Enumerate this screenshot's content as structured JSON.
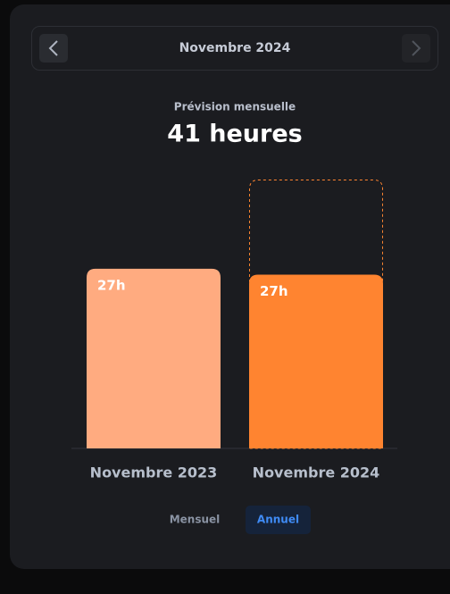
{
  "nav": {
    "title": "Novembre 2024"
  },
  "chart_data": {
    "type": "bar",
    "subtitle": "Prévision mensuelle",
    "forecast": 41,
    "forecast_label": "41 heures",
    "categories": [
      "Novembre 2023",
      "Novembre 2024"
    ],
    "values": [
      27.4,
      26.5
    ],
    "value_labels": [
      "27h",
      "27h"
    ],
    "colors": [
      "#ffab80",
      "#ff8430"
    ],
    "ylim": [
      0,
      41
    ]
  },
  "toggle": {
    "options": [
      "Mensuel",
      "Annuel"
    ],
    "active": 1
  }
}
